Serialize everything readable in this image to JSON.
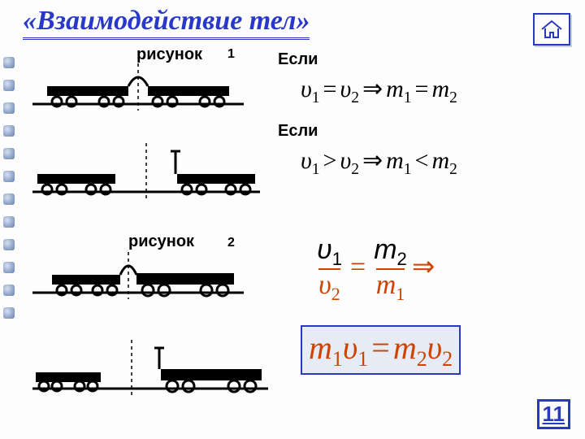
{
  "title": {
    "text": "«Взаимодействие тел»",
    "fontsize": 34
  },
  "labels": {
    "fig1": "рисунок",
    "fig2": "рисунок",
    "num1": "1",
    "num2": "2",
    "if1": "Если",
    "if2": "Если"
  },
  "formulas": {
    "f1": {
      "parts": [
        "υ",
        "1",
        " = ",
        "υ",
        "2",
        " ⇒ ",
        "m",
        "1",
        " = ",
        "m",
        "2"
      ],
      "color": "#000",
      "fontsize": 30
    },
    "f2": {
      "parts": [
        "υ",
        "1",
        " > ",
        "υ",
        "2",
        " ⇒ ",
        "m",
        "1",
        " < ",
        "m",
        "2"
      ],
      "color": "#000",
      "fontsize": 30
    },
    "f3": {
      "left_num": "υ",
      "left_num_sub": "1",
      "left_den": "υ",
      "left_den_sub": "2",
      "right_num": "m",
      "right_num_sub": "2",
      "right_den": "m",
      "right_den_sub": "1",
      "color": "#cc4400",
      "fontsize": 34
    },
    "f4": {
      "parts": [
        "m",
        "1",
        "υ",
        "1",
        " = ",
        "m",
        "2",
        "υ",
        "2"
      ],
      "color": "#cc4400",
      "fontsize": 40
    }
  },
  "page": "11",
  "colors": {
    "accent": "#2a3ac0",
    "orange": "#cc4400",
    "bg": "#fdfdfd"
  },
  "diagrams": {
    "cart_color": "#000000",
    "ground_color": "#000000",
    "dash": "4,4"
  }
}
